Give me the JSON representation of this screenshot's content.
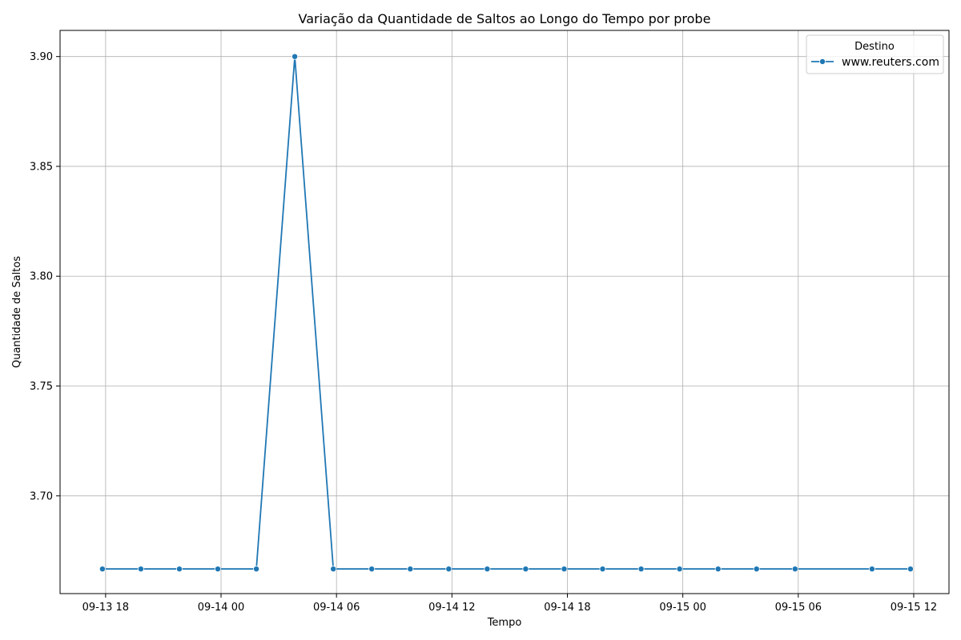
{
  "chart_data": {
    "type": "line",
    "title": "Variação da Quantidade de Saltos ao Longo do Tempo por probe",
    "xlabel": "Tempo",
    "ylabel": "Quantidade de Saltos",
    "x_ticks": [
      "09-13 18",
      "09-14 00",
      "09-14 06",
      "09-14 12",
      "09-14 18",
      "09-15 00",
      "09-15 06",
      "09-15 12"
    ],
    "y_ticks": [
      "3.70",
      "3.75",
      "3.80",
      "3.85",
      "3.90"
    ],
    "xlim": [
      "2024-09-13 15:38",
      "2024-09-15 13:50"
    ],
    "ylim": [
      3.6555,
      3.9119
    ],
    "grid": true,
    "legend": {
      "title": "Destino",
      "placement": "top-right"
    },
    "series": [
      {
        "name": "www.reuters.com",
        "color": "#1f77b4",
        "marker": "circle",
        "x": [
          "2024-09-13 17:50",
          "2024-09-13 19:50",
          "2024-09-13 21:50",
          "2024-09-13 23:50",
          "2024-09-14 01:50",
          "2024-09-14 03:50",
          "2024-09-14 05:50",
          "2024-09-14 07:50",
          "2024-09-14 09:50",
          "2024-09-14 11:50",
          "2024-09-14 13:50",
          "2024-09-14 15:50",
          "2024-09-14 17:50",
          "2024-09-14 19:50",
          "2024-09-14 21:50",
          "2024-09-14 23:50",
          "2024-09-15 01:50",
          "2024-09-15 03:50",
          "2024-09-15 05:50",
          "2024-09-15 09:50",
          "2024-09-15 11:50"
        ],
        "values": [
          3.6667,
          3.6667,
          3.6667,
          3.6667,
          3.6667,
          3.9,
          3.6667,
          3.6667,
          3.6667,
          3.6667,
          3.6667,
          3.6667,
          3.6667,
          3.6667,
          3.6667,
          3.6667,
          3.6667,
          3.6667,
          3.6667,
          3.6667,
          3.6667
        ]
      }
    ]
  }
}
